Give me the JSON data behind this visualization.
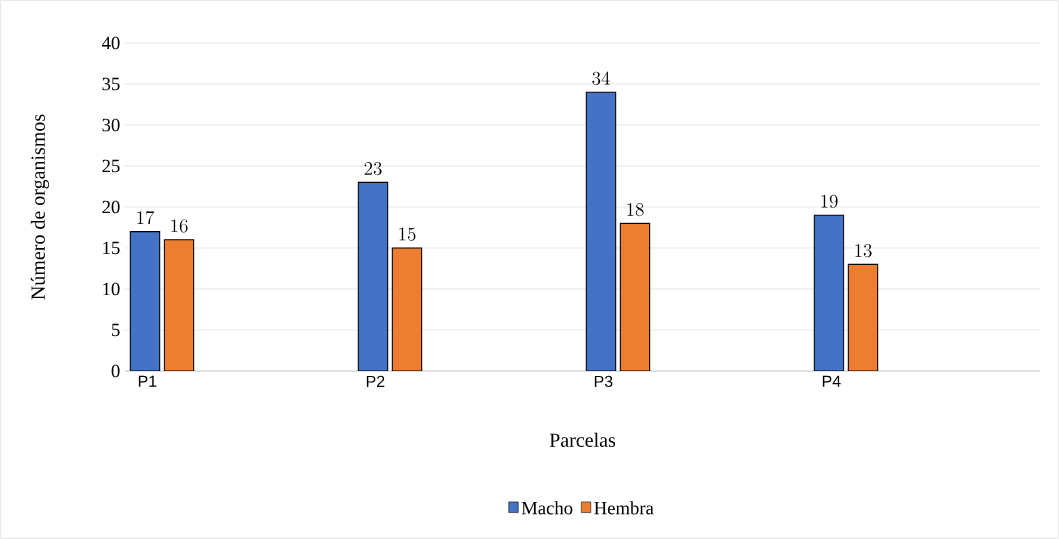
{
  "chart_data": {
    "type": "bar",
    "xlabel": "Parcelas",
    "ylabel": "Número de organismos",
    "categories": [
      "P1",
      "P2",
      "P3",
      "P4"
    ],
    "series": [
      {
        "name": "Macho",
        "color": "#4472c4",
        "values": [
          17,
          23,
          34,
          19
        ]
      },
      {
        "name": "Hembra",
        "color": "#ed7d31",
        "values": [
          16,
          15,
          18,
          13
        ]
      }
    ],
    "ylim": [
      0,
      40
    ],
    "yticks": [
      0,
      5,
      10,
      15,
      20,
      25,
      30,
      35,
      40
    ],
    "grid": "y",
    "legend": "bottom",
    "data_labels": true
  }
}
